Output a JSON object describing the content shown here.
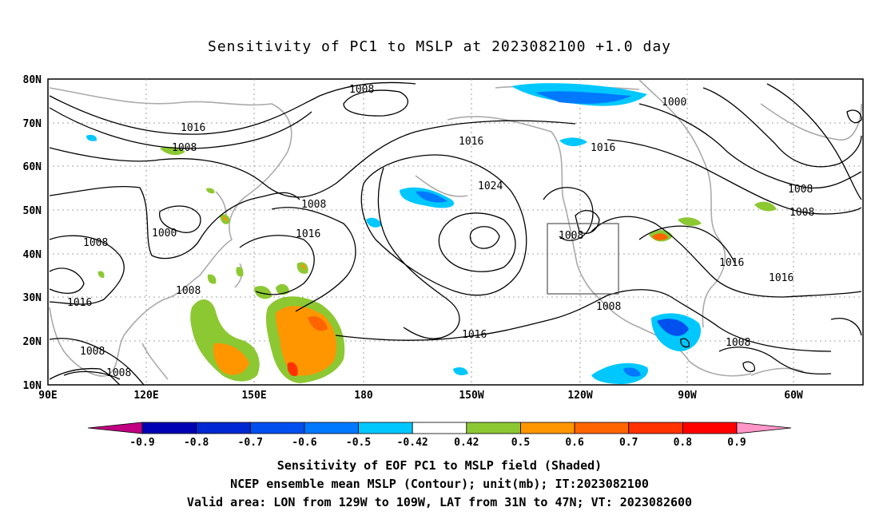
{
  "title": "Sensitivity of PC1 to MSLP at 2023082100 +1.0 day",
  "lat_labels": [
    "80N",
    "70N",
    "60N",
    "50N",
    "40N",
    "30N",
    "20N",
    "10N"
  ],
  "lon_labels": [
    "90E",
    "120E",
    "150E",
    "180",
    "150W",
    "120W",
    "90W",
    "60W"
  ],
  "contour_labels": [
    "1008",
    "1000",
    "1016",
    "1008",
    "1016",
    "1008",
    "1024",
    "1016",
    "1000",
    "1008",
    "1008",
    "1008",
    "1016",
    "1016",
    "1008",
    "1016",
    "1008",
    "1008",
    "1016",
    "1008",
    "1008",
    "1016",
    "1008"
  ],
  "colorbar": {
    "labels": [
      "-0.9",
      "-0.8",
      "-0.7",
      "-0.6",
      "-0.5",
      "-0.42",
      "0.42",
      "0.5",
      "0.6",
      "0.7",
      "0.8",
      "0.9"
    ],
    "colors": [
      "#c00080",
      "#0000b4",
      "#0028d2",
      "#0050f0",
      "#0078ff",
      "#00c8ff",
      "#ffffff",
      "#8cc832",
      "#ff9600",
      "#ff6400",
      "#ff3200",
      "#ff0000",
      "#ff96c8"
    ]
  },
  "captions": [
    "Sensitivity of EOF PC1 to MSLP field (Shaded)",
    "NCEP ensemble mean MSLP (Contour); unit(mb); IT:2023082100",
    "Valid area: LON from 129W to 109W, LAT from 31N to 47N; VT: 2023082600"
  ]
}
